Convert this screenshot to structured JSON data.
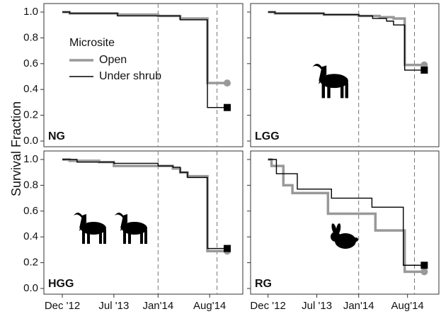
{
  "figure": {
    "ylabel": "Survival Fraction",
    "legend_title": "Microsite"
  },
  "chart_data": [
    {
      "type": "line",
      "title": "NG",
      "xlim": [
        -2.5,
        24.5
      ],
      "ylim": [
        0,
        1
      ],
      "yticks": [
        {
          "value": 0,
          "label": "0.0"
        },
        0.2,
        0.4,
        0.6,
        0.8,
        {
          "value": 1,
          "label": "1.0"
        }
      ],
      "vlines": [
        13,
        21
      ],
      "series": [
        {
          "name": "Open",
          "color": "#999999",
          "marker": "circle",
          "x": [
            0,
            1,
            7.5,
            13,
            16,
            19.7,
            22
          ],
          "values": [
            1.0,
            0.99,
            0.98,
            0.97,
            0.95,
            0.45,
            0.45
          ]
        },
        {
          "name": "Under shrub",
          "color": "#000000",
          "marker": "square",
          "x": [
            0,
            1,
            7.5,
            16,
            19.7,
            22
          ],
          "values": [
            1.0,
            0.99,
            0.97,
            0.94,
            0.26,
            0.26
          ]
        }
      ]
    },
    {
      "type": "line",
      "title": "LGG",
      "xlim": [
        -2.5,
        24.5
      ],
      "ylim": [
        0,
        1
      ],
      "yticks": [
        0,
        0.2,
        0.4,
        0.6,
        0.8,
        1
      ],
      "vlines": [
        13,
        21
      ],
      "series": [
        {
          "color": "#999999",
          "marker": "circle",
          "x": [
            0,
            1,
            8,
            13,
            16,
            18,
            19.6,
            22
          ],
          "values": [
            1.0,
            0.99,
            0.98,
            0.97,
            0.96,
            0.95,
            0.59,
            0.59
          ]
        },
        {
          "color": "#000000",
          "marker": "square",
          "x": [
            0,
            1,
            8,
            13,
            15,
            17,
            18,
            19.6,
            22
          ],
          "values": [
            1.0,
            0.99,
            0.98,
            0.97,
            0.95,
            0.93,
            0.9,
            0.55,
            0.55
          ]
        }
      ]
    },
    {
      "type": "line",
      "title": "HGG",
      "xlim": [
        -2.5,
        24.5
      ],
      "ylim": [
        0,
        1
      ],
      "yticks": [
        {
          "value": 0,
          "label": "0.0"
        },
        0.2,
        0.4,
        0.6,
        0.8,
        {
          "value": 1,
          "label": "1.0"
        }
      ],
      "xticks": [
        {
          "value": 0,
          "label": "Dec '12"
        },
        {
          "value": 7,
          "label": "Jul '13"
        },
        {
          "value": 13,
          "label": "Jan'14"
        },
        {
          "value": 20,
          "label": "Aug'14"
        }
      ],
      "vlines": [
        13,
        21
      ],
      "series": [
        {
          "color": "#999999",
          "marker": "circle",
          "x": [
            0,
            1,
            5,
            7,
            14,
            15,
            16,
            17,
            19.7,
            22
          ],
          "values": [
            1.0,
            0.99,
            0.98,
            0.95,
            0.95,
            0.93,
            0.9,
            0.87,
            0.29,
            0.29
          ]
        },
        {
          "color": "#000000",
          "marker": "square",
          "x": [
            0,
            2,
            7,
            13,
            15,
            16,
            17,
            19.7,
            22
          ],
          "values": [
            1.0,
            0.98,
            0.97,
            0.95,
            0.94,
            0.9,
            0.86,
            0.31,
            0.31
          ]
        }
      ]
    },
    {
      "type": "line",
      "title": "RG",
      "xlim": [
        -2.5,
        24.5
      ],
      "ylim": [
        0,
        1
      ],
      "yticks": [
        0,
        0.2,
        0.4,
        0.6,
        0.8,
        1
      ],
      "xticks": [
        {
          "value": 0,
          "label": "Dec '12"
        },
        {
          "value": 7,
          "label": "Jul '13"
        },
        {
          "value": 13,
          "label": "Jan'14"
        },
        {
          "value": 20,
          "label": "Aug'14"
        }
      ],
      "vlines": [
        13,
        21
      ],
      "series": [
        {
          "color": "#999999",
          "marker": "circle",
          "x": [
            0,
            0.5,
            2.2,
            3.5,
            8.6,
            15.4,
            19.6,
            22
          ],
          "values": [
            1.0,
            0.95,
            0.8,
            0.74,
            0.58,
            0.45,
            0.13,
            0.13
          ]
        },
        {
          "color": "#000000",
          "marker": "square",
          "x": [
            0,
            1.2,
            4.2,
            9.1,
            14.9,
            19.4,
            22
          ],
          "values": [
            1.0,
            0.89,
            0.77,
            0.7,
            0.63,
            0.18,
            0.18
          ]
        }
      ]
    }
  ]
}
